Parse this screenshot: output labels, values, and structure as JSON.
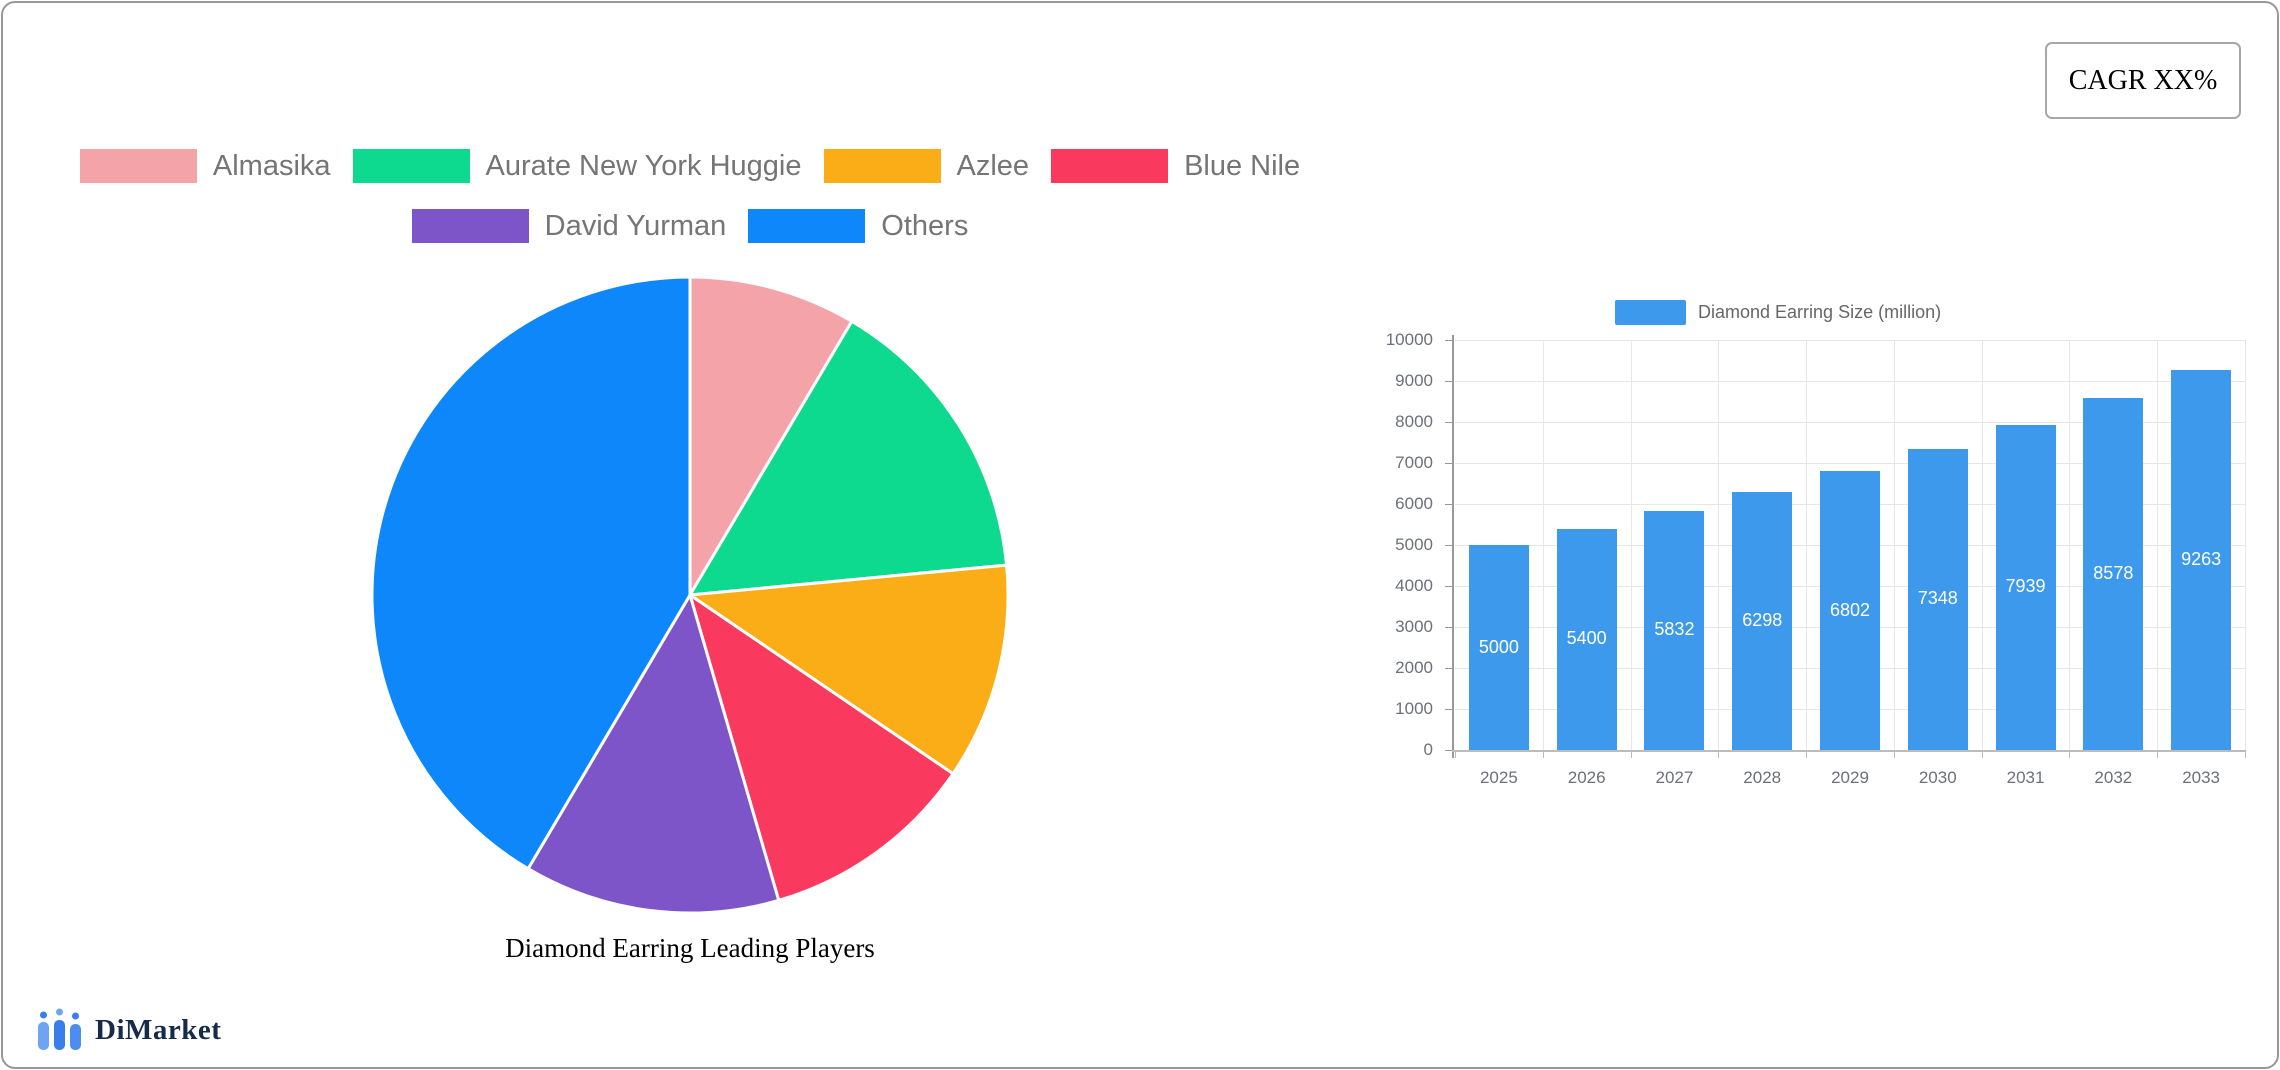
{
  "card": {
    "cagr_label": "CAGR XX%"
  },
  "brand": {
    "name": "DiMarket"
  },
  "chart_data": [
    {
      "type": "pie",
      "title": "Diamond Earring Leading Players",
      "legend_position": "top",
      "legend_row_break": 4,
      "legend_text_color": "#757575",
      "slices": [
        {
          "label": "Almasika",
          "value": 8.5,
          "color": "#F4A3A8"
        },
        {
          "label": "Aurate New York Huggie",
          "value": 15,
          "color": "#0DD98F"
        },
        {
          "label": "Azlee",
          "value": 11,
          "color": "#FBAD17"
        },
        {
          "label": "Blue Nile",
          "value": 11,
          "color": "#F93A5E"
        },
        {
          "label": "David Yurman",
          "value": 13,
          "color": "#7D55C9"
        },
        {
          "label": "Others",
          "value": 41.5,
          "color": "#0D87F9"
        }
      ]
    },
    {
      "type": "bar",
      "series_name": "Diamond Earring Size (million)",
      "categories": [
        "2025",
        "2026",
        "2027",
        "2028",
        "2029",
        "2030",
        "2031",
        "2032",
        "2033"
      ],
      "values": [
        5000,
        5400,
        5832,
        6298,
        6802,
        7348,
        7939,
        8578,
        9263
      ],
      "bar_color": "#3D99EB",
      "value_label_color": "#FFFFFF",
      "ylim": [
        0,
        10000
      ],
      "ytick_step": 1000,
      "axis_text_color": "#6E7079",
      "grid": true,
      "legend_position": "top"
    }
  ]
}
